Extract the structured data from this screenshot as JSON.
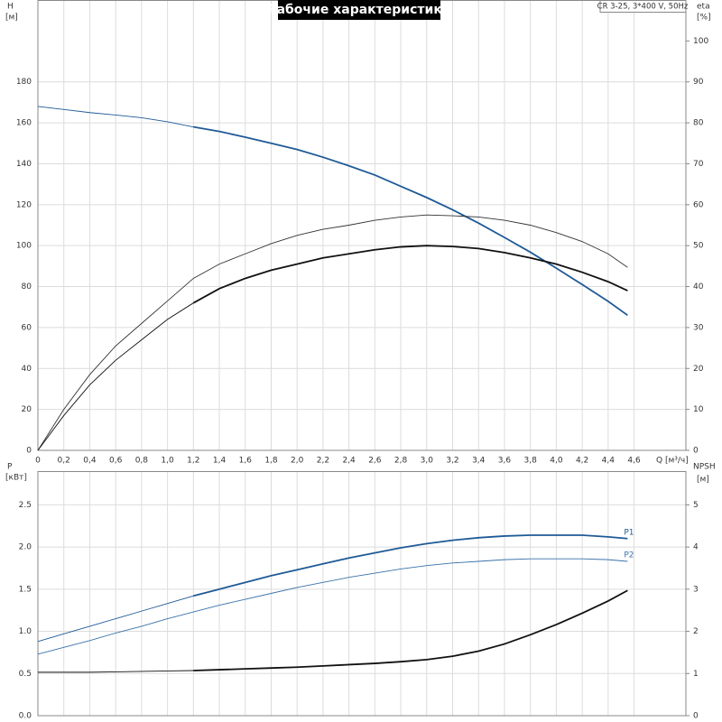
{
  "chart_data": [
    {
      "type": "line",
      "title": "Рабочие характеристики",
      "subtitle": "CR 3-25, 3*400 V, 50Hz",
      "ylabel": "H",
      "yunit": "[м]",
      "y2label": "eta",
      "y2unit": "[%]",
      "xlabel": "Q [м³/ч]",
      "x": [
        0,
        0.2,
        0.4,
        0.6,
        0.8,
        1.0,
        1.2,
        1.4,
        1.6,
        1.8,
        2.0,
        2.2,
        2.4,
        2.6,
        2.8,
        3.0,
        3.2,
        3.4,
        3.6,
        3.8,
        4.0,
        4.2,
        4.4,
        4.55
      ],
      "xlim": [
        0,
        5
      ],
      "xticks": [
        0,
        {
          "value": 0.2,
          "label": "0,2"
        },
        {
          "value": 0.4,
          "label": "0,4"
        },
        {
          "value": 0.6,
          "label": "0,6"
        },
        {
          "value": 0.8,
          "label": "0,8"
        },
        {
          "value": 1.0,
          "label": "1,0"
        },
        {
          "value": 1.2,
          "label": "1,2"
        },
        {
          "value": 1.4,
          "label": "1,4"
        },
        {
          "value": 1.6,
          "label": "1,6"
        },
        {
          "value": 1.8,
          "label": "1,8"
        },
        {
          "value": 2.0,
          "label": "2,0"
        },
        {
          "value": 2.2,
          "label": "2,2"
        },
        {
          "value": 2.4,
          "label": "2,4"
        },
        {
          "value": 2.6,
          "label": "2,6"
        },
        {
          "value": 2.8,
          "label": "2,8"
        },
        {
          "value": 3.0,
          "label": "3,0"
        },
        {
          "value": 3.2,
          "label": "3,2"
        },
        {
          "value": 3.4,
          "label": "3,4"
        },
        {
          "value": 3.6,
          "label": "3,6"
        },
        {
          "value": 3.8,
          "label": "3,8"
        },
        {
          "value": 4.0,
          "label": "4,0"
        },
        {
          "value": 4.2,
          "label": "4,2"
        },
        {
          "value": 4.4,
          "label": "4,4"
        },
        {
          "value": 4.6,
          "label": "4,6"
        }
      ],
      "xtick_labels": true,
      "ylim": [
        0,
        220
      ],
      "yticks": [
        0,
        20,
        40,
        60,
        80,
        100,
        120,
        140,
        160,
        180
      ],
      "y2lim": [
        0,
        110
      ],
      "y2ticks": [
        0,
        10,
        20,
        30,
        40,
        50,
        60,
        70,
        80,
        90,
        100
      ],
      "grid": true,
      "series": [
        {
          "color": "#1f5a96",
          "width": 1,
          "values": [
            168,
            166.5,
            165,
            163.8,
            162.5,
            160.5,
            158,
            null,
            null,
            null,
            null,
            null,
            null,
            null,
            null,
            null,
            null,
            null,
            null,
            null,
            null,
            null,
            null,
            null
          ]
        },
        {
          "color": "#1f5a96",
          "width": 2,
          "values": [
            null,
            null,
            null,
            null,
            null,
            null,
            158,
            155.8,
            153,
            150,
            147,
            143.2,
            139,
            134.5,
            129,
            123.5,
            117.5,
            111,
            104,
            96.8,
            89,
            81,
            72.8,
            66
          ]
        },
        {
          "color": "#333333",
          "width": 1,
          "axis": "y2",
          "values": [
            0,
            10,
            18.5,
            25.5,
            31,
            36.5,
            42,
            45.5,
            48,
            50.5,
            52.5,
            54,
            55,
            56.2,
            57,
            57.5,
            57.3,
            57,
            56.2,
            55,
            53.2,
            51,
            48,
            44.7
          ]
        },
        {
          "color": "#111111",
          "width": 1,
          "axis": "y2",
          "values": [
            0,
            8.5,
            16,
            22,
            27,
            32,
            36,
            null,
            null,
            null,
            null,
            null,
            null,
            null,
            null,
            null,
            null,
            null,
            null,
            null,
            null,
            null,
            null,
            null
          ]
        },
        {
          "color": "#111111",
          "width": 2,
          "axis": "y2",
          "values": [
            null,
            null,
            null,
            null,
            null,
            null,
            36,
            39.5,
            42,
            44,
            45.5,
            47,
            48,
            49,
            49.7,
            50,
            49.8,
            49.3,
            48.3,
            47,
            45.5,
            43.5,
            41.2,
            39
          ]
        }
      ]
    },
    {
      "type": "line",
      "ylabel": "P",
      "yunit": "[кВт]",
      "y2label": "NPSH",
      "y2unit": "[м]",
      "x": [
        0,
        0.2,
        0.4,
        0.6,
        0.8,
        1.0,
        1.2,
        1.4,
        1.6,
        1.8,
        2.0,
        2.2,
        2.4,
        2.6,
        2.8,
        3.0,
        3.2,
        3.4,
        3.6,
        3.8,
        4.0,
        4.2,
        4.4,
        4.55
      ],
      "xlim": [
        0,
        5
      ],
      "xticks": [
        0,
        0.2,
        0.4,
        0.6,
        0.8,
        1.0,
        1.2,
        1.4,
        1.6,
        1.8,
        2.0,
        2.2,
        2.4,
        2.6,
        2.8,
        3.0,
        3.2,
        3.4,
        3.6,
        3.8,
        4.0,
        4.2,
        4.4,
        4.6
      ],
      "xtick_labels": false,
      "ylim": [
        0,
        2.9
      ],
      "yticks": [
        {
          "value": 0,
          "label": "0.0"
        },
        0.5,
        {
          "value": 1,
          "label": "1.0"
        },
        1.5,
        {
          "value": 2,
          "label": "2.0"
        },
        2.5
      ],
      "y2lim": [
        0,
        5.8
      ],
      "y2ticks": [
        0,
        1,
        2,
        3,
        4,
        5
      ],
      "grid": true,
      "series": [
        {
          "color": "#1f5a96",
          "width": 1,
          "values": [
            0.88,
            0.97,
            1.06,
            1.15,
            1.24,
            1.33,
            1.42,
            null,
            null,
            null,
            null,
            null,
            null,
            null,
            null,
            null,
            null,
            null,
            null,
            null,
            null,
            null,
            null,
            null
          ]
        },
        {
          "name": "P1",
          "color": "#1f5a96",
          "width": 2,
          "values": [
            null,
            null,
            null,
            null,
            null,
            null,
            1.42,
            1.5,
            1.58,
            1.66,
            1.73,
            1.8,
            1.87,
            1.93,
            1.99,
            2.04,
            2.08,
            2.11,
            2.13,
            2.14,
            2.14,
            2.14,
            2.12,
            2.1
          ]
        },
        {
          "name": "P2",
          "color": "#3a72aa",
          "width": 1,
          "values": [
            0.73,
            0.81,
            0.89,
            0.98,
            1.06,
            1.15,
            1.23,
            1.31,
            1.38,
            1.45,
            1.52,
            1.58,
            1.64,
            1.69,
            1.74,
            1.78,
            1.81,
            1.83,
            1.85,
            1.86,
            1.86,
            1.86,
            1.85,
            1.83
          ]
        },
        {
          "color": "#111111",
          "width": 1,
          "axis": "y2",
          "values": [
            1.03,
            1.03,
            1.03,
            1.04,
            1.05,
            1.06,
            1.07,
            null,
            null,
            null,
            null,
            null,
            null,
            null,
            null,
            null,
            null,
            null,
            null,
            null,
            null,
            null,
            null,
            null
          ]
        },
        {
          "color": "#111111",
          "width": 2,
          "axis": "y2",
          "values": [
            null,
            null,
            null,
            null,
            null,
            null,
            1.07,
            1.09,
            1.11,
            1.13,
            1.15,
            1.18,
            1.21,
            1.24,
            1.28,
            1.33,
            1.41,
            1.53,
            1.7,
            1.92,
            2.16,
            2.43,
            2.72,
            2.97
          ]
        }
      ]
    }
  ]
}
